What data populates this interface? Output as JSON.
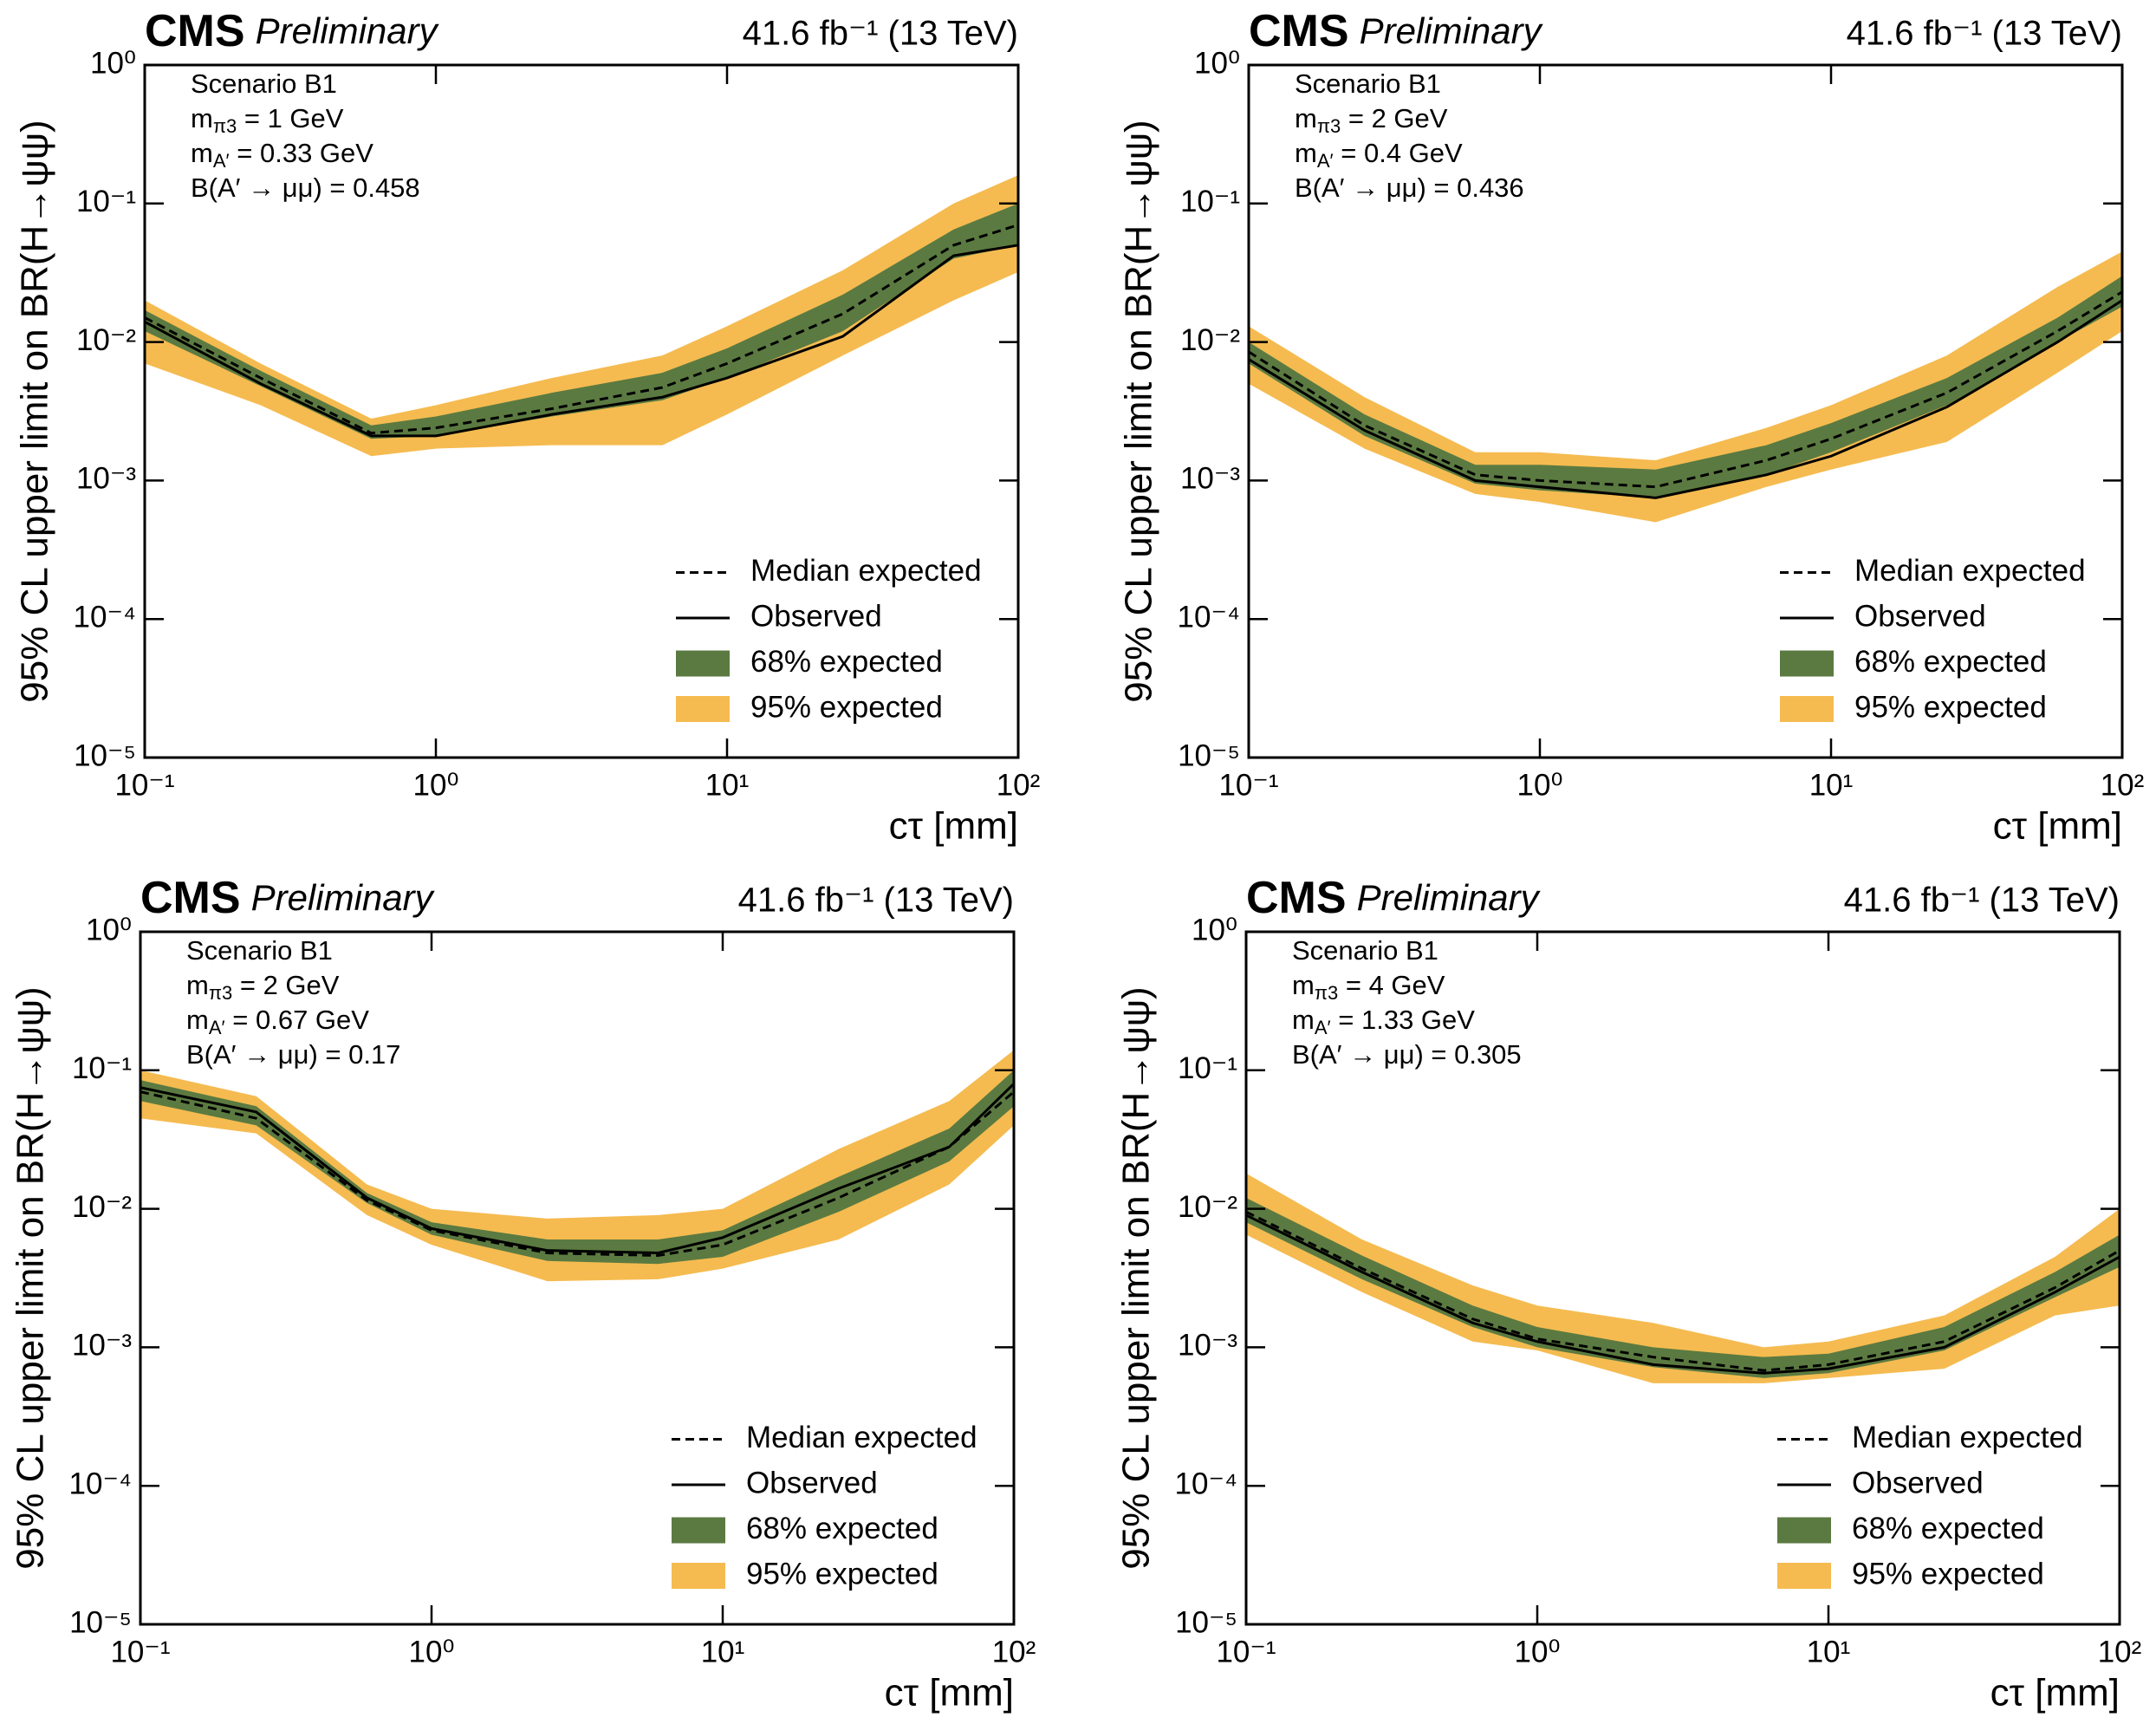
{
  "chart_data": [
    {
      "type": "line",
      "title": "CMS",
      "subtitle": "Preliminary",
      "lumi": "41.6 fb⁻¹ (13 TeV)",
      "xlabel": "cτ [mm]",
      "ylabel": "95% CL upper limit on BR(H→ψψ)",
      "annotations": [
        {
          "text": "Scenario B1"
        },
        {
          "text": "m",
          "sub": "π3",
          "rest": " = 1 GeV"
        },
        {
          "text": "m",
          "sub": "A′",
          "rest": " = 0.33 GeV"
        },
        {
          "text": "B(A′ → μμ) = 0.458"
        }
      ],
      "log_x": true,
      "log_y": true,
      "legend": "lower right",
      "xlim": [
        0.1,
        100
      ],
      "ylim": [
        1e-05,
        1
      ],
      "xticks": [
        {
          "value": 0.1,
          "label": "10⁻¹"
        },
        {
          "value": 1,
          "label": "10⁰"
        },
        {
          "value": 10,
          "label": "10¹"
        },
        {
          "value": 100,
          "label": "10²"
        }
      ],
      "yticks": [
        {
          "value": 1e-05,
          "label": "10⁻⁵"
        },
        {
          "value": 0.0001,
          "label": "10⁻⁴"
        },
        {
          "value": 0.001,
          "label": "10⁻³"
        },
        {
          "value": 0.01,
          "label": "10⁻²"
        },
        {
          "value": 0.1,
          "label": "10⁻¹"
        },
        {
          "value": 1,
          "label": "10⁰"
        }
      ],
      "x": [
        0.1,
        0.25,
        0.6,
        1,
        2.5,
        6,
        10,
        25,
        60,
        100
      ],
      "series": [
        {
          "name": "Median expected",
          "color": "#000000",
          "dashed": true,
          "values": [
            0.015,
            0.0055,
            0.0022,
            0.0024,
            0.0033,
            0.0047,
            0.007,
            0.016,
            0.05,
            0.07
          ]
        },
        {
          "name": "Observed",
          "color": "#000000",
          "values": [
            0.014,
            0.005,
            0.0021,
            0.0021,
            0.003,
            0.004,
            0.0055,
            0.011,
            0.042,
            0.05
          ]
        },
        {
          "name": "68% expected",
          "color": "#5b7a41",
          "low": [
            0.012,
            0.0048,
            0.002,
            0.0021,
            0.0029,
            0.0038,
            0.0055,
            0.012,
            0.04,
            0.05
          ],
          "high": [
            0.017,
            0.0062,
            0.0025,
            0.0029,
            0.0043,
            0.006,
            0.009,
            0.022,
            0.065,
            0.1
          ]
        },
        {
          "name": "95% expected",
          "color": "#f5bb50",
          "low": [
            0.007,
            0.0035,
            0.0015,
            0.0017,
            0.0018,
            0.0018,
            0.003,
            0.008,
            0.02,
            0.032
          ],
          "high": [
            0.02,
            0.007,
            0.0028,
            0.0035,
            0.0055,
            0.008,
            0.013,
            0.033,
            0.1,
            0.16
          ]
        }
      ]
    },
    {
      "type": "line",
      "title": "CMS",
      "subtitle": "Preliminary",
      "lumi": "41.6 fb⁻¹ (13 TeV)",
      "xlabel": "cτ [mm]",
      "ylabel": "95% CL upper limit on BR(H→ψψ)",
      "annotations": [
        {
          "text": "Scenario B1"
        },
        {
          "text": "m",
          "sub": "π3",
          "rest": " = 2 GeV"
        },
        {
          "text": "m",
          "sub": "A′",
          "rest": " = 0.4 GeV"
        },
        {
          "text": "B(A′ → μμ) = 0.436"
        }
      ],
      "log_x": true,
      "log_y": true,
      "legend": "lower right",
      "xlim": [
        0.1,
        100
      ],
      "ylim": [
        1e-05,
        1
      ],
      "xticks": [
        {
          "value": 0.1,
          "label": "10⁻¹"
        },
        {
          "value": 1,
          "label": "10⁰"
        },
        {
          "value": 10,
          "label": "10¹"
        },
        {
          "value": 100,
          "label": "10²"
        }
      ],
      "yticks": [
        {
          "value": 1e-05,
          "label": "10⁻⁵"
        },
        {
          "value": 0.0001,
          "label": "10⁻⁴"
        },
        {
          "value": 0.001,
          "label": "10⁻³"
        },
        {
          "value": 0.01,
          "label": "10⁻²"
        },
        {
          "value": 0.1,
          "label": "10⁻¹"
        },
        {
          "value": 1,
          "label": "10⁰"
        }
      ],
      "x": [
        0.1,
        0.25,
        0.6,
        1,
        2.5,
        6,
        10,
        25,
        60,
        100
      ],
      "series": [
        {
          "name": "Median expected",
          "color": "#000000",
          "dashed": true,
          "values": [
            0.0085,
            0.0025,
            0.0011,
            0.001,
            0.0009,
            0.0014,
            0.002,
            0.0043,
            0.012,
            0.023
          ]
        },
        {
          "name": "Observed",
          "color": "#000000",
          "values": [
            0.0075,
            0.0023,
            0.001,
            0.0009,
            0.00075,
            0.0011,
            0.0015,
            0.0034,
            0.01,
            0.02
          ]
        },
        {
          "name": "68% expected",
          "color": "#5b7a41",
          "low": [
            0.007,
            0.0021,
            0.00095,
            0.00085,
            0.00075,
            0.0011,
            0.0016,
            0.0035,
            0.01,
            0.018
          ],
          "high": [
            0.01,
            0.003,
            0.0013,
            0.0013,
            0.0012,
            0.0018,
            0.0026,
            0.0055,
            0.015,
            0.03
          ]
        },
        {
          "name": "95% expected",
          "color": "#f5bb50",
          "low": [
            0.005,
            0.0017,
            0.0008,
            0.0007,
            0.0005,
            0.0009,
            0.0012,
            0.0019,
            0.006,
            0.012
          ],
          "high": [
            0.013,
            0.004,
            0.0016,
            0.0016,
            0.0014,
            0.0024,
            0.0035,
            0.008,
            0.025,
            0.045
          ]
        }
      ]
    },
    {
      "type": "line",
      "title": "CMS",
      "subtitle": "Preliminary",
      "lumi": "41.6 fb⁻¹ (13 TeV)",
      "xlabel": "cτ [mm]",
      "ylabel": "95% CL upper limit on BR(H→ψψ)",
      "annotations": [
        {
          "text": "Scenario B1"
        },
        {
          "text": "m",
          "sub": "π3",
          "rest": " = 2 GeV"
        },
        {
          "text": "m",
          "sub": "A′",
          "rest": " = 0.67 GeV"
        },
        {
          "text": "B(A′ → μμ) = 0.17"
        }
      ],
      "log_x": true,
      "log_y": true,
      "legend": "lower right",
      "xlim": [
        0.1,
        100
      ],
      "ylim": [
        1e-05,
        1
      ],
      "xticks": [
        {
          "value": 0.1,
          "label": "10⁻¹"
        },
        {
          "value": 1,
          "label": "10⁰"
        },
        {
          "value": 10,
          "label": "10¹"
        },
        {
          "value": 100,
          "label": "10²"
        }
      ],
      "yticks": [
        {
          "value": 1e-05,
          "label": "10⁻⁵"
        },
        {
          "value": 0.0001,
          "label": "10⁻⁴"
        },
        {
          "value": 0.001,
          "label": "10⁻³"
        },
        {
          "value": 0.01,
          "label": "10⁻²"
        },
        {
          "value": 0.1,
          "label": "10⁻¹"
        },
        {
          "value": 1,
          "label": "10⁰"
        }
      ],
      "x": [
        0.1,
        0.25,
        0.6,
        1,
        2.5,
        6,
        10,
        25,
        60,
        100
      ],
      "series": [
        {
          "name": "Median expected",
          "color": "#000000",
          "dashed": true,
          "values": [
            0.07,
            0.045,
            0.0115,
            0.007,
            0.0048,
            0.0046,
            0.0055,
            0.012,
            0.028,
            0.07
          ]
        },
        {
          "name": "Observed",
          "color": "#000000",
          "values": [
            0.075,
            0.05,
            0.012,
            0.0072,
            0.005,
            0.0048,
            0.0062,
            0.014,
            0.028,
            0.08
          ]
        },
        {
          "name": "68% expected",
          "color": "#5b7a41",
          "low": [
            0.06,
            0.04,
            0.011,
            0.0065,
            0.0042,
            0.004,
            0.0045,
            0.0095,
            0.022,
            0.055
          ],
          "high": [
            0.085,
            0.055,
            0.013,
            0.008,
            0.006,
            0.006,
            0.007,
            0.017,
            0.038,
            0.1
          ]
        },
        {
          "name": "95% expected",
          "color": "#f5bb50",
          "low": [
            0.045,
            0.035,
            0.009,
            0.0055,
            0.003,
            0.0031,
            0.0037,
            0.006,
            0.015,
            0.04
          ],
          "high": [
            0.1,
            0.065,
            0.015,
            0.01,
            0.0085,
            0.009,
            0.01,
            0.027,
            0.06,
            0.14
          ]
        }
      ]
    },
    {
      "type": "line",
      "title": "CMS",
      "subtitle": "Preliminary",
      "lumi": "41.6 fb⁻¹ (13 TeV)",
      "xlabel": "cτ [mm]",
      "ylabel": "95% CL upper limit on BR(H→ψψ)",
      "annotations": [
        {
          "text": "Scenario B1"
        },
        {
          "text": "m",
          "sub": "π3",
          "rest": " = 4 GeV"
        },
        {
          "text": "m",
          "sub": "A′",
          "rest": " = 1.33 GeV"
        },
        {
          "text": "B(A′ → μμ) = 0.305"
        }
      ],
      "log_x": true,
      "log_y": true,
      "legend": "lower right",
      "xlim": [
        0.1,
        100
      ],
      "ylim": [
        1e-05,
        1
      ],
      "xticks": [
        {
          "value": 0.1,
          "label": "10⁻¹"
        },
        {
          "value": 1,
          "label": "10⁰"
        },
        {
          "value": 10,
          "label": "10¹"
        },
        {
          "value": 100,
          "label": "10²"
        }
      ],
      "yticks": [
        {
          "value": 1e-05,
          "label": "10⁻⁵"
        },
        {
          "value": 0.0001,
          "label": "10⁻⁴"
        },
        {
          "value": 0.001,
          "label": "10⁻³"
        },
        {
          "value": 0.01,
          "label": "10⁻²"
        },
        {
          "value": 0.1,
          "label": "10⁻¹"
        },
        {
          "value": 1,
          "label": "10⁰"
        }
      ],
      "x": [
        0.1,
        0.25,
        0.6,
        1,
        2.5,
        6,
        10,
        25,
        60,
        100
      ],
      "series": [
        {
          "name": "Median expected",
          "color": "#000000",
          "dashed": true,
          "values": [
            0.0095,
            0.0037,
            0.0016,
            0.00115,
            0.00085,
            0.00068,
            0.00075,
            0.0011,
            0.0027,
            0.005
          ]
        },
        {
          "name": "Observed",
          "color": "#000000",
          "values": [
            0.009,
            0.0035,
            0.0015,
            0.0011,
            0.00075,
            0.00065,
            0.0007,
            0.001,
            0.0025,
            0.0045
          ]
        },
        {
          "name": "68% expected",
          "color": "#5b7a41",
          "low": [
            0.008,
            0.0031,
            0.0014,
            0.001,
            0.00072,
            0.0006,
            0.00065,
            0.00095,
            0.0023,
            0.0038
          ],
          "high": [
            0.012,
            0.0046,
            0.002,
            0.0014,
            0.001,
            0.00085,
            0.0009,
            0.0014,
            0.0035,
            0.0065
          ]
        },
        {
          "name": "95% expected",
          "color": "#f5bb50",
          "low": [
            0.0065,
            0.0025,
            0.0011,
            0.00095,
            0.00055,
            0.00055,
            0.0006,
            0.0007,
            0.0017,
            0.002
          ],
          "high": [
            0.018,
            0.006,
            0.0028,
            0.002,
            0.0015,
            0.001,
            0.0011,
            0.0017,
            0.0045,
            0.01
          ]
        }
      ]
    }
  ]
}
